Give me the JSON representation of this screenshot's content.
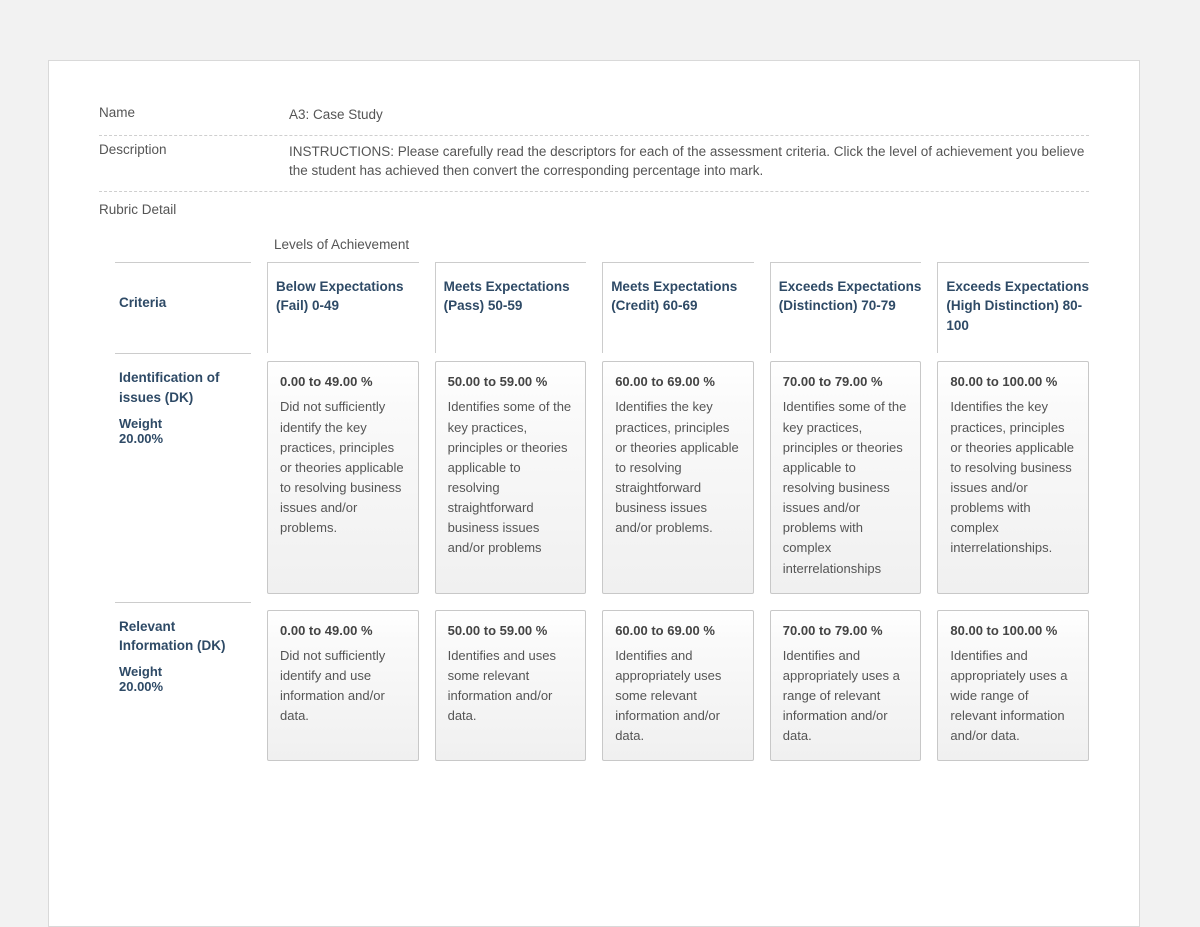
{
  "meta": {
    "name_label": "Name",
    "name_value": "A3: Case Study",
    "description_label": "Description",
    "description_value": "INSTRUCTIONS:  Please carefully read the descriptors for each of the assessment criteria.  Click the level of achievement you believe the student has achieved then convert the corresponding percentage into mark.",
    "rubric_detail_label": "Rubric Detail",
    "levels_caption": "Levels of Achievement"
  },
  "headers": {
    "criteria": "Criteria",
    "levels": [
      "Below Expectations (Fail) 0-49",
      "Meets Expectations (Pass) 50-59",
      "Meets Expectations (Credit) 60-69",
      "Exceeds Expectations (Distinction) 70-79",
      "Exceeds Expectations (High Distinction) 80-100"
    ]
  },
  "weight_label": "Weight",
  "criteria": [
    {
      "title": "Identification of issues (DK)",
      "weight": "20.00%",
      "cells": [
        {
          "range": "0.00 to 49.00 %",
          "desc": "Did not sufficiently identify the key practices, principles or theories applicable to resolving business issues and/or problems."
        },
        {
          "range": "50.00 to 59.00 %",
          "desc": "Identifies some of the key practices, principles or theories applicable to resolving straightforward business issues and/or problems"
        },
        {
          "range": "60.00 to 69.00 %",
          "desc": "Identifies the key practices, principles or theories applicable to resolving straightforward business issues and/or problems."
        },
        {
          "range": "70.00 to 79.00 %",
          "desc": "Identifies some of the key practices, principles or theories applicable to resolving business issues and/or problems with complex interrelationships"
        },
        {
          "range": "80.00 to 100.00 %",
          "desc": "Identifies the key practices, principles or theories applicable to resolving business issues and/or problems with complex interrelationships."
        }
      ]
    },
    {
      "title": "Relevant Information (DK)",
      "weight": "20.00%",
      "cells": [
        {
          "range": "0.00 to 49.00 %",
          "desc": "Did not sufficiently identify and use information and/or data."
        },
        {
          "range": "50.00 to 59.00 %",
          "desc": "Identifies and uses some relevant information and/or data."
        },
        {
          "range": "60.00 to 69.00 %",
          "desc": "Identifies and appropriately uses some relevant information and/or data."
        },
        {
          "range": "70.00 to 79.00 %",
          "desc": "Identifies and appropriately uses a range of relevant information and/or data."
        },
        {
          "range": "80.00 to 100.00 %",
          "desc": "Identifies and appropriately uses a wide range of relevant information and/or data."
        }
      ]
    }
  ],
  "colors": {
    "heading": "#2e4a66",
    "text": "#555555",
    "page_border": "#d9d9d9",
    "outer_bg": "#f2f2f2",
    "cell_border": "#c8c8c8"
  }
}
